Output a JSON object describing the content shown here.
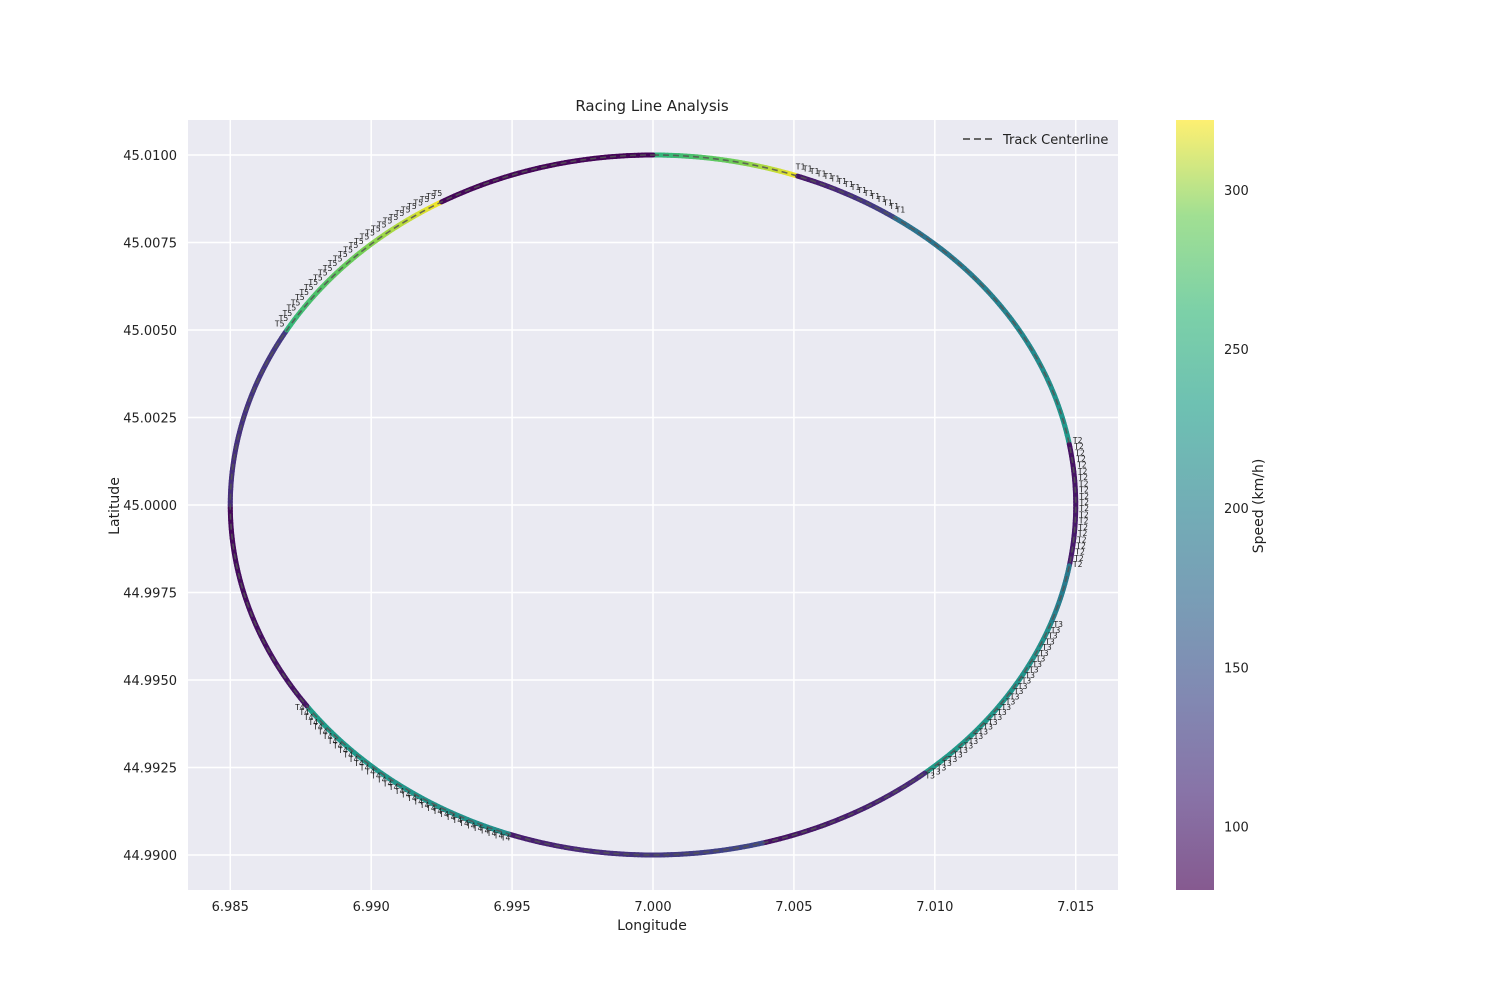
{
  "chart_data": {
    "type": "scatter",
    "title": "Racing Line Analysis",
    "xlabel": "Longitude",
    "ylabel": "Latitude",
    "xlim": [
      6.9835,
      7.0165
    ],
    "ylim": [
      44.989,
      45.011
    ],
    "xticks": [
      "6.985",
      "6.990",
      "6.995",
      "7.000",
      "7.005",
      "7.010",
      "7.015"
    ],
    "yticks": [
      "44.9900",
      "44.9925",
      "44.9950",
      "44.9975",
      "45.0000",
      "45.0025",
      "45.0050",
      "45.0075",
      "45.0100"
    ],
    "grid": true,
    "legend": {
      "placement": "upper-right",
      "entries": [
        "Track Centerline"
      ]
    },
    "centerline": {
      "center": [
        7.0,
        45.0
      ],
      "radius_lon": 0.015,
      "radius_lat": 0.01,
      "style": "dashed",
      "color": "#555555"
    },
    "colorbar": {
      "label": "Speed (km/h)",
      "min": 80,
      "max": 322,
      "ticks": [
        "100",
        "150",
        "200",
        "250",
        "300"
      ],
      "colormap": "viridis"
    },
    "segments": [
      {
        "from_deg": 0,
        "to_deg": 20,
        "speed_start": 255,
        "speed_end": 320
      },
      {
        "from_deg": 20,
        "to_deg": 35,
        "speed_start": 95,
        "speed_end": 135
      },
      {
        "from_deg": 35,
        "to_deg": 80,
        "speed_start": 180,
        "speed_end": 225
      },
      {
        "from_deg": 80,
        "to_deg": 100,
        "speed_start": 92,
        "speed_end": 100
      },
      {
        "from_deg": 100,
        "to_deg": 110,
        "speed_start": 190,
        "speed_end": 200
      },
      {
        "from_deg": 110,
        "to_deg": 140,
        "speed_start": 215,
        "speed_end": 230
      },
      {
        "from_deg": 140,
        "to_deg": 165,
        "speed_start": 112,
        "speed_end": 92
      },
      {
        "from_deg": 165,
        "to_deg": 200,
        "speed_start": 140,
        "speed_end": 100
      },
      {
        "from_deg": 200,
        "to_deg": 235,
        "speed_start": 215,
        "speed_end": 230
      },
      {
        "from_deg": 235,
        "to_deg": 270,
        "speed_start": 95,
        "speed_end": 85
      },
      {
        "from_deg": 270,
        "to_deg": 300,
        "speed_start": 115,
        "speed_end": 125
      },
      {
        "from_deg": 300,
        "to_deg": 330,
        "speed_start": 260,
        "speed_end": 320
      },
      {
        "from_deg": 330,
        "to_deg": 360,
        "speed_start": 85,
        "speed_end": 82
      }
    ],
    "annotations": [
      {
        "label": "T1",
        "from_deg": 20,
        "to_deg": 35
      },
      {
        "label": "T2",
        "from_deg": 80,
        "to_deg": 100
      },
      {
        "label": "T3",
        "from_deg": 110,
        "to_deg": 140
      },
      {
        "label": "T4",
        "from_deg": 200,
        "to_deg": 235
      },
      {
        "label": "T5",
        "from_deg": 300,
        "to_deg": 330
      }
    ]
  }
}
